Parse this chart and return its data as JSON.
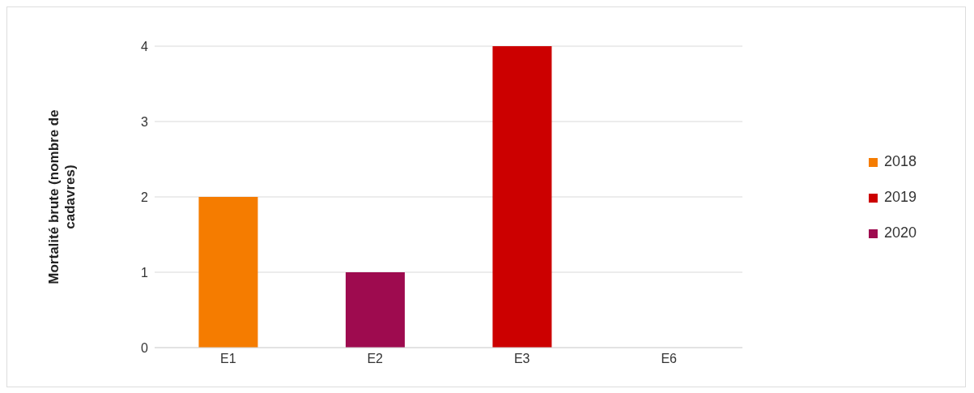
{
  "chart_data": {
    "type": "bar",
    "ylabel": "Mortalité brute (nombre de cadavres)",
    "categories": [
      "E1",
      "E2",
      "E3",
      "E6"
    ],
    "series": [
      {
        "name": "2018",
        "color": "#f57c00",
        "values": [
          2,
          0,
          0,
          0
        ]
      },
      {
        "name": "2019",
        "color": "#cc0000",
        "values": [
          0,
          0,
          4,
          0
        ]
      },
      {
        "name": "2020",
        "color": "#9e0b4f",
        "values": [
          0,
          1,
          0,
          0
        ]
      }
    ],
    "stacked": true,
    "ylim": [
      0,
      4
    ],
    "yticks": [
      0,
      1,
      2,
      3,
      4
    ],
    "grid": "y",
    "legend": "right"
  }
}
